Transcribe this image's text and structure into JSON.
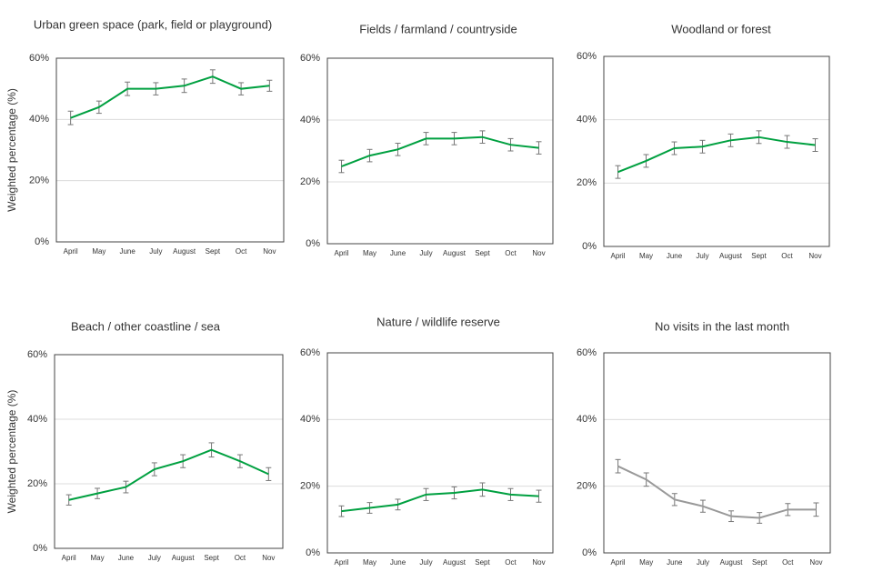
{
  "chart_data": [
    {
      "type": "line",
      "title": "Urban green space (park, field or playground)",
      "ylabel": "Weighted percentage (%)",
      "categories": [
        "April",
        "May",
        "June",
        "July",
        "August",
        "Sept",
        "Oct",
        "Nov"
      ],
      "values": [
        40.5,
        44,
        50,
        50,
        51,
        54,
        50,
        51
      ],
      "errors": [
        2.2,
        2,
        2.2,
        2,
        2.2,
        2.2,
        2,
        1.8
      ],
      "color": "#00a040",
      "ylim": [
        0,
        60
      ],
      "yticks": [
        {
          "value": 0,
          "label": "0%"
        },
        {
          "value": 20,
          "label": "20%"
        },
        {
          "value": 40,
          "label": "40%"
        },
        {
          "value": 60,
          "label": "60%"
        }
      ],
      "grid": true
    },
    {
      "type": "line",
      "title": "Fields / farmland / countryside",
      "categories": [
        "April",
        "May",
        "June",
        "July",
        "August",
        "Sept",
        "Oct",
        "Nov"
      ],
      "values": [
        25,
        28.5,
        30.5,
        34,
        34,
        34.5,
        32,
        31
      ],
      "errors": [
        2,
        2,
        2,
        2,
        2,
        2,
        2,
        2
      ],
      "color": "#00a040",
      "ylim": [
        0,
        60
      ],
      "yticks": [
        {
          "value": 0,
          "label": "0%"
        },
        {
          "value": 20,
          "label": "20%"
        },
        {
          "value": 40,
          "label": "40%"
        },
        {
          "value": 60,
          "label": "60%"
        }
      ],
      "grid": true
    },
    {
      "type": "line",
      "title": "Woodland or forest",
      "categories": [
        "April",
        "May",
        "June",
        "July",
        "August",
        "Sept",
        "Oct",
        "Nov"
      ],
      "values": [
        23.5,
        27,
        31,
        31.5,
        33.5,
        34.5,
        33,
        32
      ],
      "errors": [
        2,
        2,
        2,
        2,
        2,
        2,
        2,
        2
      ],
      "color": "#00a040",
      "ylim": [
        0,
        60
      ],
      "yticks": [
        {
          "value": 0,
          "label": "0%"
        },
        {
          "value": 20,
          "label": "20%"
        },
        {
          "value": 40,
          "label": "40%"
        },
        {
          "value": 60,
          "label": "60%"
        }
      ],
      "grid": true
    },
    {
      "type": "line",
      "title": "Beach / other coastline / sea",
      "ylabel": "Weighted percentage (%)",
      "categories": [
        "April",
        "May",
        "June",
        "July",
        "August",
        "Sept",
        "Oct",
        "Nov"
      ],
      "values": [
        15,
        17,
        19,
        24.5,
        27,
        30.5,
        27,
        23
      ],
      "errors": [
        1.6,
        1.6,
        1.8,
        2,
        2,
        2.2,
        2,
        2
      ],
      "color": "#00a040",
      "ylim": [
        0,
        60
      ],
      "yticks": [
        {
          "value": 0,
          "label": "0%"
        },
        {
          "value": 20,
          "label": "20%"
        },
        {
          "value": 40,
          "label": "40%"
        },
        {
          "value": 60,
          "label": "60%"
        }
      ],
      "grid": true
    },
    {
      "type": "line",
      "title": "Nature / wildlife reserve",
      "categories": [
        "April",
        "May",
        "June",
        "July",
        "August",
        "Sept",
        "Oct",
        "Nov"
      ],
      "values": [
        12.5,
        13.5,
        14.5,
        17.5,
        18,
        19,
        17.5,
        17
      ],
      "errors": [
        1.6,
        1.6,
        1.6,
        1.8,
        1.8,
        2,
        1.8,
        1.8
      ],
      "color": "#00a040",
      "ylim": [
        0,
        60
      ],
      "yticks": [
        {
          "value": 0,
          "label": "0%"
        },
        {
          "value": 20,
          "label": "20%"
        },
        {
          "value": 40,
          "label": "40%"
        },
        {
          "value": 60,
          "label": "60%"
        }
      ],
      "grid": true
    },
    {
      "type": "line",
      "title": "No visits in the last month",
      "categories": [
        "April",
        "May",
        "June",
        "July",
        "August",
        "Sept",
        "Oct",
        "Nov"
      ],
      "values": [
        26,
        22,
        16,
        14,
        11,
        10.5,
        13,
        13
      ],
      "errors": [
        2,
        2,
        1.8,
        1.8,
        1.6,
        1.6,
        1.8,
        2
      ],
      "color": "#999999",
      "ylim": [
        0,
        60
      ],
      "yticks": [
        {
          "value": 0,
          "label": "0%"
        },
        {
          "value": 20,
          "label": "20%"
        },
        {
          "value": 40,
          "label": "40%"
        },
        {
          "value": 60,
          "label": "60%"
        }
      ],
      "grid": true
    }
  ]
}
